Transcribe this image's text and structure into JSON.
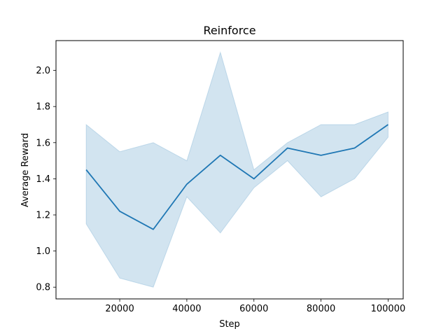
{
  "chart_data": {
    "type": "line",
    "title": "Reinforce",
    "xlabel": "Step",
    "ylabel": "Average Reward",
    "x": [
      10000,
      20000,
      30000,
      40000,
      50000,
      60000,
      70000,
      80000,
      90000,
      100000
    ],
    "series": [
      {
        "values": [
          1.45,
          1.22,
          1.12,
          1.37,
          1.53,
          1.4,
          1.57,
          1.53,
          1.57,
          1.7
        ],
        "lower": [
          1.15,
          0.85,
          0.8,
          1.3,
          1.1,
          1.35,
          1.5,
          1.3,
          1.4,
          1.63
        ],
        "upper": [
          1.7,
          1.55,
          1.6,
          1.5,
          2.1,
          1.45,
          1.6,
          1.7,
          1.7,
          1.77
        ],
        "color": "#1f77b4",
        "band_color": "#1f77b4"
      }
    ],
    "xlim": [
      1000,
      104500
    ],
    "ylim": [
      0.735,
      2.165
    ],
    "xticks": [
      20000,
      40000,
      60000,
      80000,
      100000
    ],
    "xtick_labels": [
      "20000",
      "40000",
      "60000",
      "80000",
      "100000"
    ],
    "yticks": [
      0.8,
      1.0,
      1.2,
      1.4,
      1.6,
      1.8,
      2.0
    ],
    "ytick_labels": [
      "0.8",
      "1.0",
      "1.2",
      "1.4",
      "1.6",
      "1.8",
      "2.0"
    ],
    "grid": false,
    "legend": "none"
  }
}
